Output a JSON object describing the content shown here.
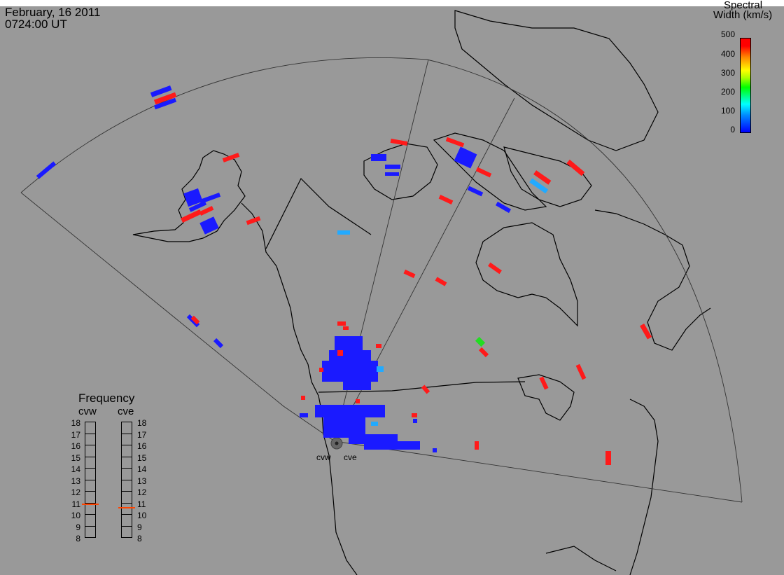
{
  "timestamp": {
    "date": "February, 16 2011",
    "time": "0724:00 UT"
  },
  "colorbar": {
    "title_line1": "Spectral",
    "title_line2": "Width (km/s)",
    "ticks": [
      "500",
      "400",
      "300",
      "200",
      "100",
      "0"
    ],
    "range": [
      0,
      500
    ],
    "colors": [
      "#0000ff",
      "#00aaff",
      "#00ffff",
      "#00ff00",
      "#ffff00",
      "#ff8800",
      "#ff0000"
    ]
  },
  "frequency_panel": {
    "title": "Frequency",
    "radars": [
      "cvw",
      "cve"
    ],
    "scale": [
      "18",
      "17",
      "16",
      "15",
      "14",
      "13",
      "12",
      "11",
      "10",
      "9",
      "8"
    ],
    "selected_mhz": {
      "cvw": 10.9,
      "cve": 10.6
    },
    "marker_color": "#ff4400"
  },
  "radar_sites": {
    "west": "cvw",
    "east": "cve"
  },
  "colors": {
    "background": "#999999",
    "low_width": "#1a1aff",
    "high_width": "#ff1a1a",
    "mid_width": "#22aaff"
  }
}
